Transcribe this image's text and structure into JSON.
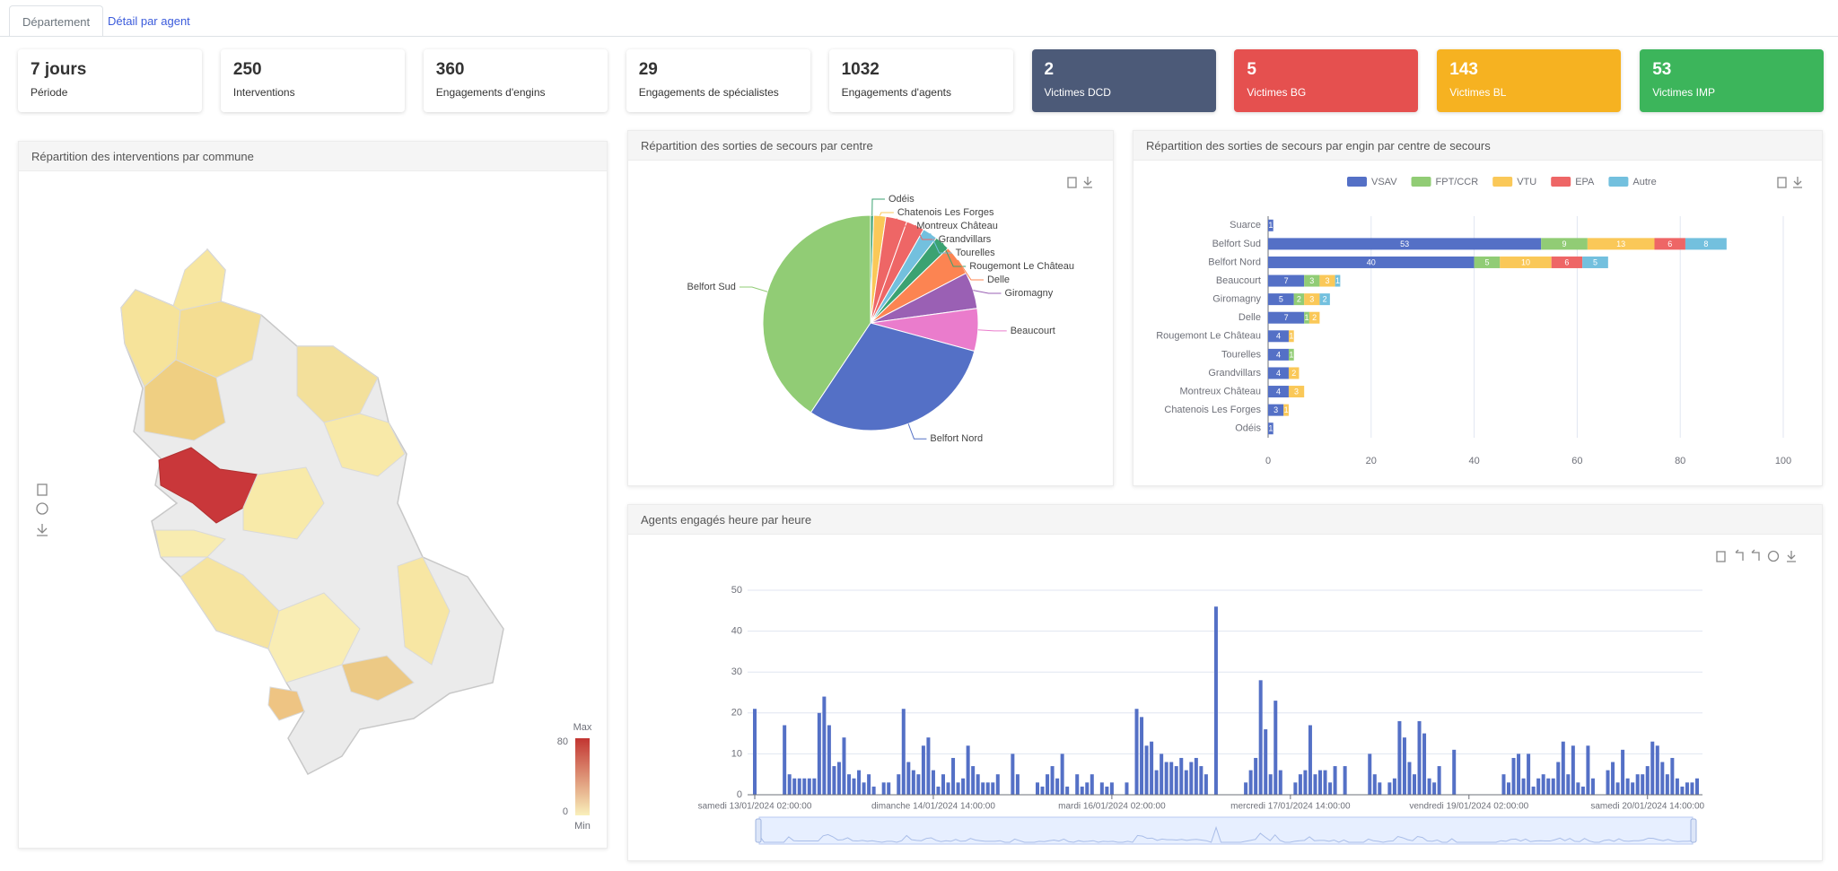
{
  "tabs": [
    "Département",
    "Détail par agent"
  ],
  "kpis": [
    {
      "value": "7 jours",
      "label": "Période"
    },
    {
      "value": 250,
      "label": "Interventions"
    },
    {
      "value": 360,
      "label": "Engagements d'engins"
    },
    {
      "value": 29,
      "label": "Engagements de spécialistes"
    },
    {
      "value": 1032,
      "label": "Engagements d'agents"
    },
    {
      "value": 2,
      "label": "Victimes DCD",
      "color": "#4c5a78"
    },
    {
      "value": 5,
      "label": "Victimes BG",
      "color": "#e5504f"
    },
    {
      "value": 143,
      "label": "Victimes BL",
      "color": "#f6b221"
    },
    {
      "value": 53,
      "label": "Victimes IMP",
      "color": "#3cb55b"
    }
  ],
  "map": {
    "title": "Répartition des interventions par commune",
    "visual_map": {
      "max_label": "Max",
      "min_label": "Min",
      "max": 80,
      "min": 0,
      "colors": [
        "#f9f0bb",
        "#c23531"
      ]
    }
  },
  "chart_data": [
    {
      "type": "pie",
      "title": "Répartition des sorties de secours par centre",
      "categories": [
        "Odéis",
        "Chatenois Les Forges",
        "Montreux Château",
        "Grandvillars",
        "Tourelles",
        "Rougemont Le Château",
        "Delle",
        "Giromagny",
        "Beaucourt",
        "Belfort Nord",
        "Belfort Sud"
      ],
      "values": [
        1,
        4,
        7,
        6,
        5,
        5,
        10,
        12,
        14,
        66,
        89
      ],
      "colors": [
        "#3ba272",
        "#fac858",
        "#ee6666",
        "#ee6666",
        "#73c0de",
        "#3ba272",
        "#fc8452",
        "#9a60b4",
        "#ea7ccc",
        "#5470c6",
        "#91cc75"
      ]
    },
    {
      "type": "hbar",
      "stacked": true,
      "title": "Répartition des sorties de secours par engin par centre de secours",
      "categories": [
        "Suarce",
        "Belfort Sud",
        "Belfort Nord",
        "Beaucourt",
        "Giromagny",
        "Delle",
        "Rougemont Le Château",
        "Tourelles",
        "Grandvillars",
        "Montreux Château",
        "Chatenois Les Forges",
        "Odéis"
      ],
      "series": [
        {
          "name": "VSAV",
          "color": "#5470c6",
          "values": [
            1,
            53,
            40,
            7,
            5,
            7,
            4,
            4,
            4,
            4,
            3,
            1
          ]
        },
        {
          "name": "FPT/CCR",
          "color": "#91cc75",
          "values": [
            0,
            9,
            5,
            3,
            2,
            1,
            0,
            1,
            0,
            0,
            0,
            0
          ]
        },
        {
          "name": "VTU",
          "color": "#fac858",
          "values": [
            0,
            13,
            10,
            3,
            3,
            2,
            1,
            0,
            2,
            3,
            1,
            0
          ]
        },
        {
          "name": "EPA",
          "color": "#ee6666",
          "values": [
            0,
            6,
            6,
            0,
            0,
            0,
            0,
            0,
            0,
            0,
            0,
            0
          ]
        },
        {
          "name": "Autre",
          "color": "#73c0de",
          "values": [
            0,
            8,
            5,
            1,
            2,
            0,
            0,
            0,
            0,
            0,
            0,
            0
          ]
        }
      ],
      "xlim": [
        0,
        100
      ],
      "xticks": [
        0,
        20,
        40,
        60,
        80,
        100
      ],
      "grid": true,
      "legend": "top"
    },
    {
      "type": "bar",
      "title": "Agents engagés heure par heure",
      "color": "#5470c6",
      "categories": [
        "samedi 13/01/2024 02:00:00",
        null,
        null,
        null,
        null,
        null,
        null,
        null,
        null,
        null,
        null,
        null,
        null,
        null,
        null,
        null,
        null,
        null,
        null,
        null,
        null,
        null,
        null,
        null,
        null,
        null,
        null,
        null,
        null,
        null,
        null,
        null,
        null,
        null,
        null,
        null,
        "dimanche 14/01/2024 14:00:00",
        null,
        null,
        null,
        null,
        null,
        null,
        null,
        null,
        null,
        null,
        null,
        null,
        null,
        null,
        null,
        null,
        null,
        null,
        null,
        null,
        null,
        null,
        null,
        null,
        null,
        null,
        null,
        null,
        null,
        null,
        null,
        null,
        null,
        null,
        null,
        "mardi 16/01/2024 02:00:00",
        null,
        null,
        null,
        null,
        null,
        null,
        null,
        null,
        null,
        null,
        null,
        null,
        null,
        null,
        null,
        null,
        null,
        null,
        null,
        null,
        null,
        null,
        null,
        null,
        null,
        null,
        null,
        null,
        null,
        null,
        null,
        null,
        null,
        null,
        null,
        "mercredi 17/01/2024 14:00:00",
        null,
        null,
        null,
        null,
        null,
        null,
        null,
        null,
        null,
        null,
        null,
        null,
        null,
        null,
        null,
        null,
        null,
        null,
        null,
        null,
        null,
        null,
        null,
        null,
        null,
        null,
        null,
        null,
        null,
        null,
        null,
        null,
        null,
        null,
        null,
        "vendredi 19/01/2024 02:00:00",
        null,
        null,
        null,
        null,
        null,
        null,
        null,
        null,
        null,
        null,
        null,
        null,
        null,
        null,
        null,
        null,
        null,
        null,
        null,
        null,
        null,
        null,
        null,
        null,
        null,
        null,
        null,
        null,
        null,
        null,
        null,
        null,
        null,
        null,
        null,
        "samedi 20/01/2024 14:00:00",
        null,
        null,
        null,
        null,
        null,
        null,
        null,
        null,
        null,
        null
      ],
      "values": [
        21,
        0,
        0,
        0,
        0,
        0,
        17,
        5,
        4,
        4,
        4,
        4,
        4,
        20,
        24,
        17,
        7,
        8,
        14,
        5,
        4,
        6,
        3,
        5,
        2,
        0,
        3,
        3,
        0,
        5,
        21,
        8,
        6,
        5,
        12,
        14,
        6,
        2,
        5,
        3,
        9,
        3,
        4,
        12,
        7,
        5,
        3,
        3,
        3,
        5,
        0,
        0,
        10,
        5,
        0,
        0,
        0,
        3,
        2,
        5,
        7,
        4,
        10,
        2,
        0,
        5,
        2,
        3,
        5,
        0,
        3,
        2,
        3,
        0,
        0,
        3,
        0,
        21,
        19,
        12,
        13,
        6,
        10,
        8,
        8,
        7,
        9,
        6,
        8,
        9,
        7,
        5,
        0,
        46,
        0,
        0,
        0,
        0,
        0,
        3,
        6,
        9,
        28,
        16,
        5,
        23,
        6,
        0,
        0,
        3,
        5,
        6,
        17,
        5,
        6,
        6,
        3,
        7,
        0,
        7,
        0,
        0,
        0,
        0,
        10,
        5,
        3,
        0,
        3,
        4,
        18,
        14,
        8,
        5,
        18,
        15,
        4,
        3,
        7,
        0,
        0,
        11,
        0,
        0,
        0,
        0,
        0,
        0,
        0,
        0,
        0,
        5,
        3,
        9,
        10,
        4,
        10,
        2,
        4,
        5,
        4,
        4,
        8,
        13,
        5,
        12,
        3,
        2,
        12,
        4,
        0,
        0,
        6,
        8,
        3,
        11,
        4,
        3,
        5,
        5,
        7,
        13,
        12,
        8,
        5,
        9,
        4,
        2,
        3,
        3,
        4
      ],
      "ylim": [
        0,
        50
      ],
      "yticks": [
        0,
        10,
        20,
        30,
        40,
        50
      ],
      "grid": true
    }
  ]
}
